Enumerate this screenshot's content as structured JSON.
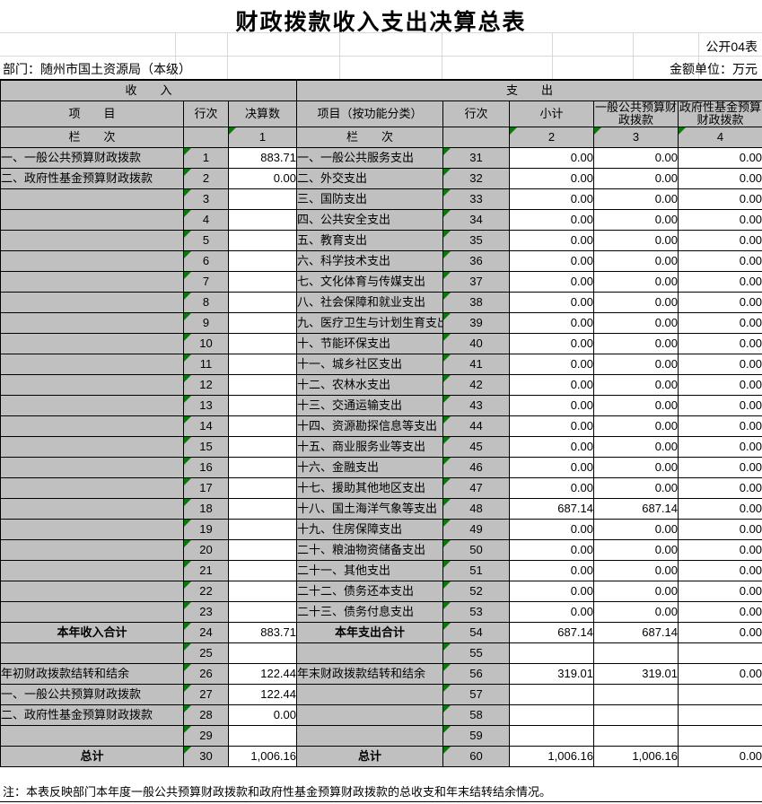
{
  "meta": {
    "title": "财政拨款收入支出决算总表",
    "pub_mark": "公开04表",
    "department": "部门：随州市国土资源局（本级）",
    "unit": "金额单位：万元",
    "note": "注：本表反映部门本年度一般公共预算财政拨款和政府性基金预算财政拨款的总收支和年末结转结余情况。"
  },
  "colors": {
    "cell_gray": "#C0C0C0",
    "triangle_green": "#008000",
    "grid_light": "#D9D9D9"
  },
  "table": {
    "section_headers": {
      "income": "收　　入",
      "expense": "支　　出"
    },
    "column_headers": {
      "income_item": "项　　目",
      "income_line": "行次",
      "income_value": "决算数",
      "expense_item": "项目（按功能分类）",
      "expense_line": "行次",
      "expense_subtotal": "小计",
      "expense_general": "一般公共预算财政拨款",
      "expense_fund": "政府性基金预算财政拨款"
    },
    "index_row": {
      "income_label": "栏　　次",
      "income_index": "1",
      "expense_label": "栏　　次",
      "expense_indices": [
        "2",
        "3",
        "4"
      ]
    },
    "rows": [
      {
        "income": {
          "item": "一、一般公共预算财政拨款",
          "line": "1",
          "value": "883.71",
          "emphasis": false
        },
        "expense": {
          "item": "一、一般公共服务支出",
          "line": "31",
          "subtotal": "0.00",
          "general": "0.00",
          "fund": "0.00",
          "emphasis": false
        }
      },
      {
        "income": {
          "item": "二、政府性基金预算财政拨款",
          "line": "2",
          "value": "0.00",
          "emphasis": false
        },
        "expense": {
          "item": "二、外交支出",
          "line": "32",
          "subtotal": "0.00",
          "general": "0.00",
          "fund": "0.00",
          "emphasis": false
        }
      },
      {
        "income": {
          "item": "",
          "line": "3",
          "value": "",
          "emphasis": false
        },
        "expense": {
          "item": "三、国防支出",
          "line": "33",
          "subtotal": "0.00",
          "general": "0.00",
          "fund": "0.00",
          "emphasis": false
        }
      },
      {
        "income": {
          "item": "",
          "line": "4",
          "value": "",
          "emphasis": false
        },
        "expense": {
          "item": "四、公共安全支出",
          "line": "34",
          "subtotal": "0.00",
          "general": "0.00",
          "fund": "0.00",
          "emphasis": false
        }
      },
      {
        "income": {
          "item": "",
          "line": "5",
          "value": "",
          "emphasis": false
        },
        "expense": {
          "item": "五、教育支出",
          "line": "35",
          "subtotal": "0.00",
          "general": "0.00",
          "fund": "0.00",
          "emphasis": false
        }
      },
      {
        "income": {
          "item": "",
          "line": "6",
          "value": "",
          "emphasis": false
        },
        "expense": {
          "item": "六、科学技术支出",
          "line": "36",
          "subtotal": "0.00",
          "general": "0.00",
          "fund": "0.00",
          "emphasis": false
        }
      },
      {
        "income": {
          "item": "",
          "line": "7",
          "value": "",
          "emphasis": false
        },
        "expense": {
          "item": "七、文化体育与传媒支出",
          "line": "37",
          "subtotal": "0.00",
          "general": "0.00",
          "fund": "0.00",
          "emphasis": false
        }
      },
      {
        "income": {
          "item": "",
          "line": "8",
          "value": "",
          "emphasis": false
        },
        "expense": {
          "item": "八、社会保障和就业支出",
          "line": "38",
          "subtotal": "0.00",
          "general": "0.00",
          "fund": "0.00",
          "emphasis": false
        }
      },
      {
        "income": {
          "item": "",
          "line": "9",
          "value": "",
          "emphasis": false
        },
        "expense": {
          "item": "九、医疗卫生与计划生育支出",
          "line": "39",
          "subtotal": "0.00",
          "general": "0.00",
          "fund": "0.00",
          "emphasis": false
        }
      },
      {
        "income": {
          "item": "",
          "line": "10",
          "value": "",
          "emphasis": false
        },
        "expense": {
          "item": "十、节能环保支出",
          "line": "40",
          "subtotal": "0.00",
          "general": "0.00",
          "fund": "0.00",
          "emphasis": false
        }
      },
      {
        "income": {
          "item": "",
          "line": "11",
          "value": "",
          "emphasis": false
        },
        "expense": {
          "item": "十一、城乡社区支出",
          "line": "41",
          "subtotal": "0.00",
          "general": "0.00",
          "fund": "0.00",
          "emphasis": false
        }
      },
      {
        "income": {
          "item": "",
          "line": "12",
          "value": "",
          "emphasis": false
        },
        "expense": {
          "item": "十二、农林水支出",
          "line": "42",
          "subtotal": "0.00",
          "general": "0.00",
          "fund": "0.00",
          "emphasis": false
        }
      },
      {
        "income": {
          "item": "",
          "line": "13",
          "value": "",
          "emphasis": false
        },
        "expense": {
          "item": "十三、交通运输支出",
          "line": "43",
          "subtotal": "0.00",
          "general": "0.00",
          "fund": "0.00",
          "emphasis": false
        }
      },
      {
        "income": {
          "item": "",
          "line": "14",
          "value": "",
          "emphasis": false
        },
        "expense": {
          "item": "十四、资源勘探信息等支出",
          "line": "44",
          "subtotal": "0.00",
          "general": "0.00",
          "fund": "0.00",
          "emphasis": false
        }
      },
      {
        "income": {
          "item": "",
          "line": "15",
          "value": "",
          "emphasis": false
        },
        "expense": {
          "item": "十五、商业服务业等支出",
          "line": "45",
          "subtotal": "0.00",
          "general": "0.00",
          "fund": "0.00",
          "emphasis": false
        }
      },
      {
        "income": {
          "item": "",
          "line": "16",
          "value": "",
          "emphasis": false
        },
        "expense": {
          "item": "十六、金融支出",
          "line": "46",
          "subtotal": "0.00",
          "general": "0.00",
          "fund": "0.00",
          "emphasis": false
        }
      },
      {
        "income": {
          "item": "",
          "line": "17",
          "value": "",
          "emphasis": false
        },
        "expense": {
          "item": "十七、援助其他地区支出",
          "line": "47",
          "subtotal": "0.00",
          "general": "0.00",
          "fund": "0.00",
          "emphasis": false
        }
      },
      {
        "income": {
          "item": "",
          "line": "18",
          "value": "",
          "emphasis": false
        },
        "expense": {
          "item": "十八、国土海洋气象等支出",
          "line": "48",
          "subtotal": "687.14",
          "general": "687.14",
          "fund": "0.00",
          "emphasis": false
        }
      },
      {
        "income": {
          "item": "",
          "line": "19",
          "value": "",
          "emphasis": false
        },
        "expense": {
          "item": "十九、住房保障支出",
          "line": "49",
          "subtotal": "0.00",
          "general": "0.00",
          "fund": "0.00",
          "emphasis": false
        }
      },
      {
        "income": {
          "item": "",
          "line": "20",
          "value": "",
          "emphasis": false
        },
        "expense": {
          "item": "二十、粮油物资储备支出",
          "line": "50",
          "subtotal": "0.00",
          "general": "0.00",
          "fund": "0.00",
          "emphasis": false
        }
      },
      {
        "income": {
          "item": "",
          "line": "21",
          "value": "",
          "emphasis": false
        },
        "expense": {
          "item": "二十一、其他支出",
          "line": "51",
          "subtotal": "0.00",
          "general": "0.00",
          "fund": "0.00",
          "emphasis": false
        }
      },
      {
        "income": {
          "item": "",
          "line": "22",
          "value": "",
          "emphasis": false
        },
        "expense": {
          "item": "二十二、债务还本支出",
          "line": "52",
          "subtotal": "0.00",
          "general": "0.00",
          "fund": "0.00",
          "emphasis": false
        }
      },
      {
        "income": {
          "item": "",
          "line": "23",
          "value": "",
          "emphasis": false
        },
        "expense": {
          "item": "二十三、债务付息支出",
          "line": "53",
          "subtotal": "0.00",
          "general": "0.00",
          "fund": "0.00",
          "emphasis": false
        }
      },
      {
        "income": {
          "item": "本年收入合计",
          "line": "24",
          "value": "883.71",
          "emphasis": true
        },
        "expense": {
          "item": "本年支出合计",
          "line": "54",
          "subtotal": "687.14",
          "general": "687.14",
          "fund": "0.00",
          "emphasis": true
        }
      },
      {
        "income": {
          "item": "",
          "line": "25",
          "value": "",
          "emphasis": false
        },
        "expense": {
          "item": "",
          "line": "55",
          "subtotal": "",
          "general": "",
          "fund": "",
          "emphasis": false
        }
      },
      {
        "income": {
          "item": "年初财政拨款结转和结余",
          "line": "26",
          "value": "122.44",
          "emphasis": false
        },
        "expense": {
          "item": "年末财政拨款结转和结余",
          "line": "56",
          "subtotal": "319.01",
          "general": "319.01",
          "fund": "0.00",
          "emphasis": false
        }
      },
      {
        "income": {
          "item": "一、一般公共预算财政拨款",
          "line": "27",
          "value": "122.44",
          "emphasis": false
        },
        "expense": {
          "item": "",
          "line": "57",
          "subtotal": "",
          "general": "",
          "fund": "",
          "emphasis": false
        }
      },
      {
        "income": {
          "item": "二、政府性基金预算财政拨款",
          "line": "28",
          "value": "0.00",
          "emphasis": false
        },
        "expense": {
          "item": "",
          "line": "58",
          "subtotal": "",
          "general": "",
          "fund": "",
          "emphasis": false
        }
      },
      {
        "income": {
          "item": "",
          "line": "29",
          "value": "",
          "emphasis": false
        },
        "expense": {
          "item": "",
          "line": "59",
          "subtotal": "",
          "general": "",
          "fund": "",
          "emphasis": false
        }
      },
      {
        "income": {
          "item": "总计",
          "line": "30",
          "value": "1,006.16",
          "emphasis": true
        },
        "expense": {
          "item": "总计",
          "line": "60",
          "subtotal": "1,006.16",
          "general": "1,006.16",
          "fund": "0.00",
          "emphasis": true
        }
      }
    ]
  }
}
